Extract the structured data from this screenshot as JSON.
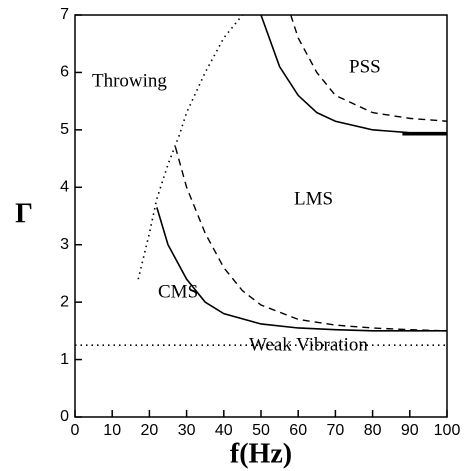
{
  "chart_data": {
    "type": "line",
    "xlabel": "f(Hz)",
    "ylabel": "Γ",
    "xlim": [
      0,
      100
    ],
    "ylim": [
      0,
      7
    ],
    "xticks": [
      0,
      10,
      20,
      30,
      40,
      50,
      60,
      70,
      80,
      90,
      100
    ],
    "yticks": [
      0,
      1,
      2,
      3,
      4,
      5,
      6,
      7
    ],
    "annotations": [
      "Throwing",
      "PSS",
      "LMS",
      "CMS",
      "Weak Vibration"
    ],
    "series": [
      {
        "style": "dotted",
        "color": "#000000",
        "x": [
          17,
          20,
          22,
          25,
          28,
          30,
          35,
          40,
          45
        ],
        "values": [
          2.4,
          3.2,
          3.8,
          4.4,
          4.9,
          5.3,
          6.0,
          6.6,
          7.0
        ]
      },
      {
        "style": "solid",
        "color": "#000000",
        "x": [
          22,
          25,
          30,
          35,
          40,
          50,
          60,
          70,
          80,
          100
        ],
        "values": [
          3.65,
          3.0,
          2.4,
          2.0,
          1.8,
          1.62,
          1.55,
          1.52,
          1.5,
          1.5
        ]
      },
      {
        "style": "dashed",
        "color": "#000000",
        "x": [
          27,
          30,
          35,
          40,
          45,
          50,
          60,
          70,
          80,
          90,
          100
        ],
        "values": [
          4.7,
          4.0,
          3.2,
          2.6,
          2.2,
          1.95,
          1.7,
          1.6,
          1.55,
          1.52,
          1.5
        ]
      },
      {
        "style": "solid",
        "color": "#000000",
        "x": [
          50,
          55,
          60,
          65,
          70,
          80,
          90,
          100
        ],
        "values": [
          7.0,
          6.1,
          5.6,
          5.3,
          5.15,
          5.0,
          4.95,
          4.95
        ]
      },
      {
        "style": "thick",
        "color": "#000000",
        "x": [
          88,
          100
        ],
        "values": [
          4.93,
          4.93
        ]
      },
      {
        "style": "dashed",
        "color": "#000000",
        "x": [
          58,
          60,
          65,
          70,
          80,
          90,
          100
        ],
        "values": [
          7.0,
          6.6,
          6.0,
          5.6,
          5.3,
          5.2,
          5.15
        ]
      },
      {
        "style": "dotted",
        "color": "#000000",
        "x": [
          0,
          100
        ],
        "values": [
          1.25,
          1.25
        ]
      }
    ]
  }
}
